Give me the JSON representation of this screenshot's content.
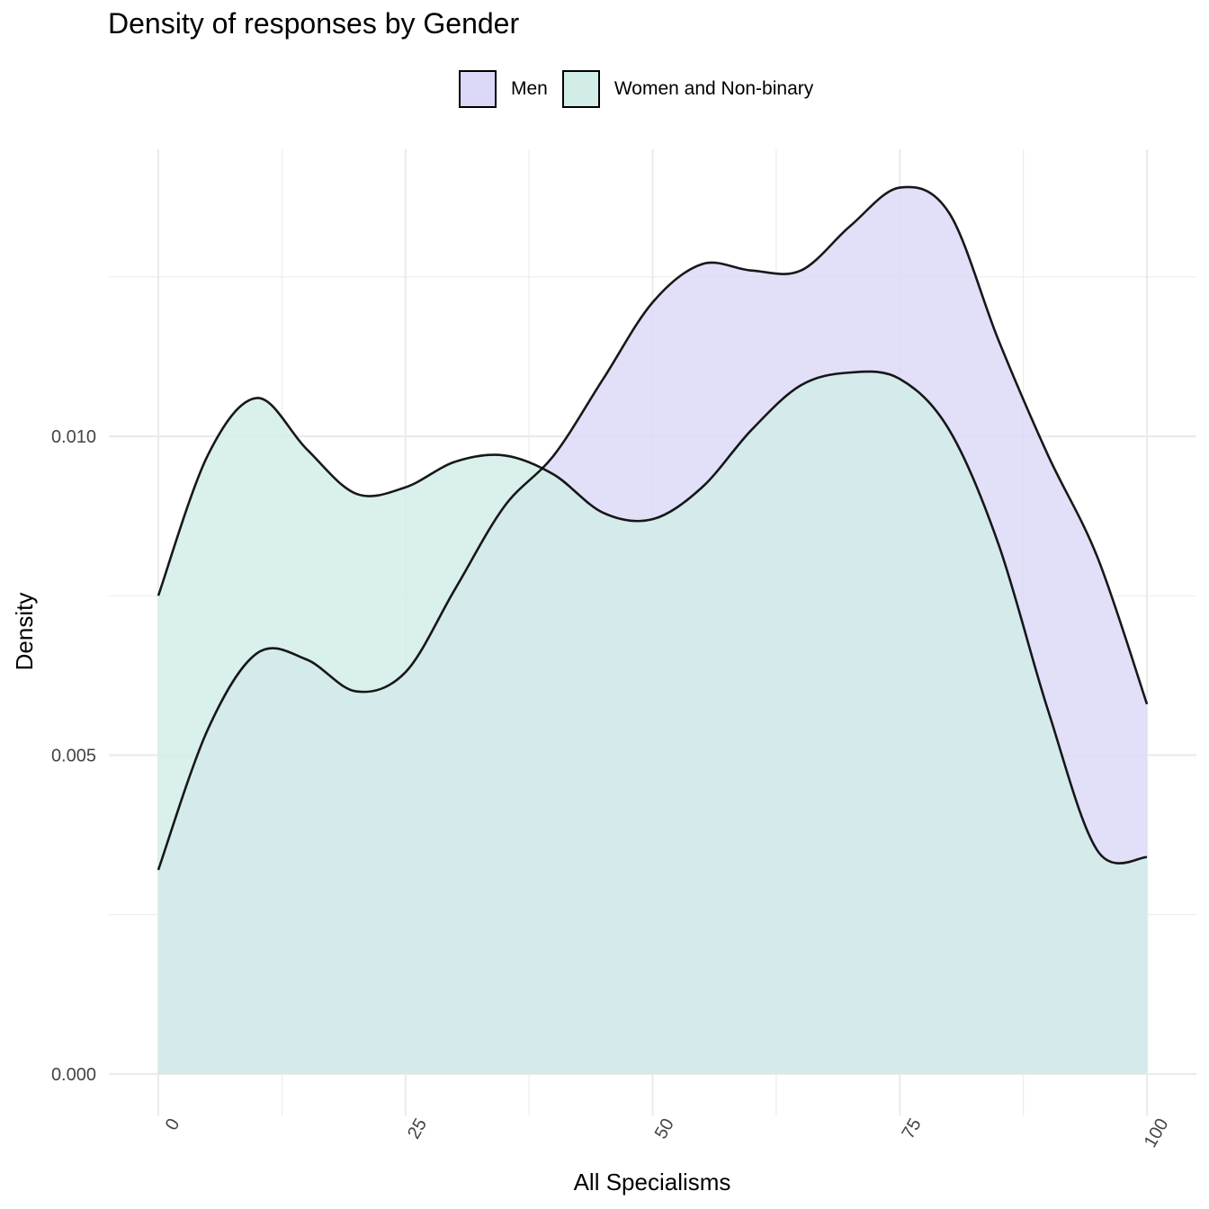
{
  "chart_data": {
    "type": "area",
    "title": "Density of responses by Gender",
    "xlabel": "All Specialisms",
    "ylabel": "Density",
    "xlim": [
      -5,
      105
    ],
    "ylim": [
      -0.00065,
      0.0145
    ],
    "x_ticks": [
      0,
      25,
      50,
      75,
      100
    ],
    "x_tick_labels": [
      "0",
      "25",
      "50",
      "75",
      "100"
    ],
    "y_ticks": [
      0.0,
      0.005,
      0.01
    ],
    "y_tick_labels": [
      "0.000",
      "0.005",
      "0.010"
    ],
    "grid": true,
    "legend_position": "top",
    "x": [
      0,
      5,
      10,
      15,
      20,
      25,
      30,
      35,
      40,
      45,
      50,
      55,
      60,
      65,
      70,
      75,
      80,
      85,
      90,
      95,
      100
    ],
    "series": [
      {
        "name": "Men",
        "color": "#dcd8f8",
        "values": [
          0.0032,
          0.0054,
          0.0066,
          0.0065,
          0.006,
          0.0063,
          0.0076,
          0.0089,
          0.0097,
          0.0109,
          0.0121,
          0.0127,
          0.0126,
          0.0126,
          0.0133,
          0.0139,
          0.0135,
          0.0115,
          0.0097,
          0.0081,
          0.0058
        ]
      },
      {
        "name": "Women and Non-binary",
        "color": "#d2ede8",
        "values": [
          0.0075,
          0.0097,
          0.0106,
          0.0098,
          0.0091,
          0.0092,
          0.0096,
          0.0097,
          0.0094,
          0.0088,
          0.0087,
          0.0092,
          0.0101,
          0.0108,
          0.011,
          0.0109,
          0.0101,
          0.0083,
          0.0057,
          0.0035,
          0.0034
        ]
      }
    ]
  }
}
